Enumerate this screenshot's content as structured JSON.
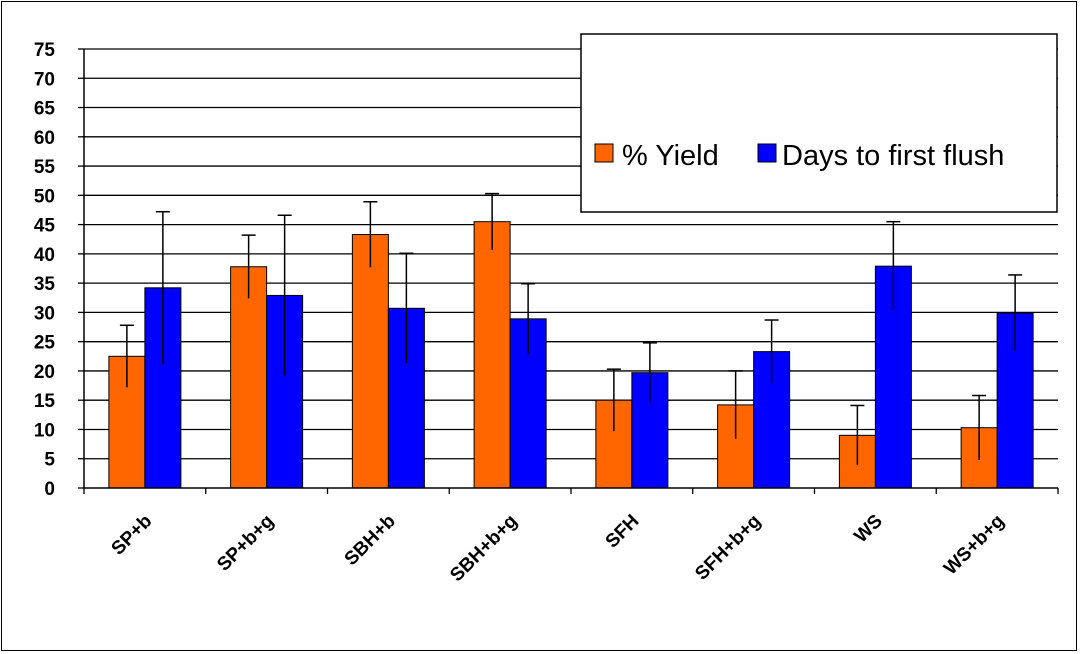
{
  "chart_data": {
    "type": "bar",
    "categories": [
      "SP+b",
      "SP+b+g",
      "SBH+b",
      "SBH+b+g",
      "SFH",
      "SFH+b+g",
      "WS",
      "WS+b+g"
    ],
    "series": [
      {
        "name": "% Yield",
        "color": "#FF6600",
        "values": [
          22.5,
          37.8,
          43.3,
          45.5,
          15.0,
          14.2,
          9.0,
          10.3
        ],
        "error": [
          5.3,
          5.4,
          5.6,
          4.8,
          5.3,
          5.8,
          5.1,
          5.5
        ]
      },
      {
        "name": "Days to first flush",
        "color": "#0000FF",
        "values": [
          34.2,
          32.9,
          30.7,
          28.9,
          19.7,
          23.3,
          37.9,
          29.9
        ],
        "error": [
          13.0,
          13.7,
          9.4,
          6.0,
          5.1,
          5.4,
          7.6,
          6.5
        ]
      }
    ],
    "ylim": [
      0,
      75
    ],
    "ytick_step": 5,
    "grid": true,
    "legend_position": "top-right",
    "title": "",
    "xlabel": "",
    "ylabel": ""
  }
}
